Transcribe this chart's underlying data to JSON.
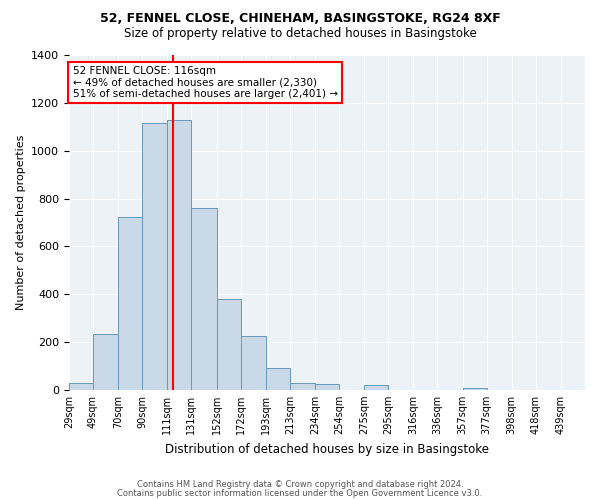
{
  "title_line1": "52, FENNEL CLOSE, CHINEHAM, BASINGSTOKE, RG24 8XF",
  "title_line2": "Size of property relative to detached houses in Basingstoke",
  "xlabel": "Distribution of detached houses by size in Basingstoke",
  "ylabel": "Number of detached properties",
  "bin_labels": [
    "29sqm",
    "49sqm",
    "70sqm",
    "90sqm",
    "111sqm",
    "131sqm",
    "152sqm",
    "172sqm",
    "193sqm",
    "213sqm",
    "234sqm",
    "254sqm",
    "275sqm",
    "295sqm",
    "316sqm",
    "336sqm",
    "357sqm",
    "377sqm",
    "398sqm",
    "418sqm",
    "439sqm"
  ],
  "bar_heights": [
    30,
    235,
    725,
    1115,
    1130,
    760,
    380,
    225,
    90,
    30,
    25,
    0,
    20,
    0,
    0,
    0,
    10,
    0,
    0,
    0,
    0
  ],
  "bar_color": "#c9d9e8",
  "bar_edge_color": "#6699bb",
  "vline_x_index": 4,
  "vline_color": "red",
  "annotation_text": "52 FENNEL CLOSE: 116sqm\n← 49% of detached houses are smaller (2,330)\n51% of semi-detached houses are larger (2,401) →",
  "annotation_box_color": "white",
  "annotation_box_edge_color": "red",
  "footnote1": "Contains HM Land Registry data © Crown copyright and database right 2024.",
  "footnote2": "Contains public sector information licensed under the Open Government Licence v3.0.",
  "bg_color": "#edf2f7",
  "ylim": [
    0,
    1400
  ],
  "yticks": [
    0,
    200,
    400,
    600,
    800,
    1000,
    1200,
    1400
  ],
  "bin_edges": [
    29,
    49,
    70,
    90,
    111,
    131,
    152,
    172,
    193,
    213,
    234,
    254,
    275,
    295,
    316,
    336,
    357,
    377,
    398,
    418,
    439,
    459
  ]
}
